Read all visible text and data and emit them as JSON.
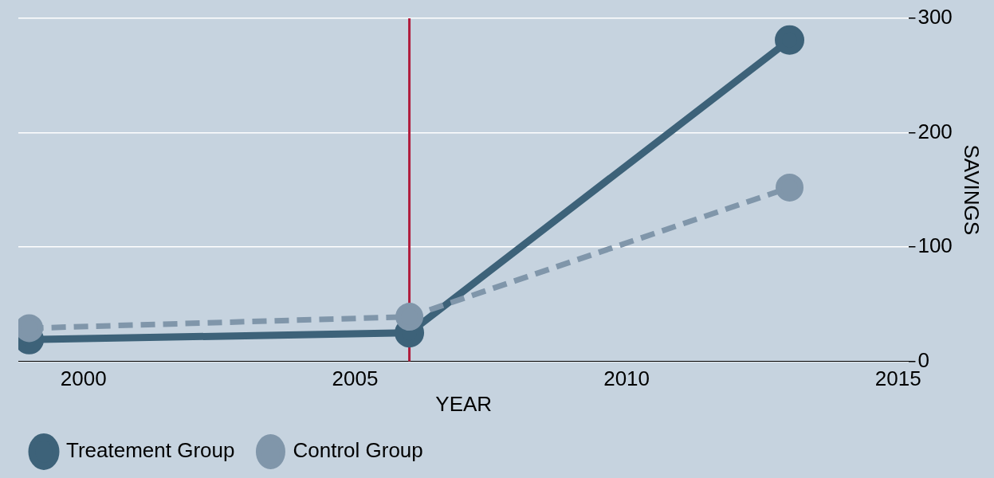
{
  "chart_data": {
    "type": "line",
    "xlabel": "YEAR",
    "ylabel": "SAVINGS",
    "x": [
      1999,
      2006,
      2013
    ],
    "series": [
      {
        "name": "Treatement Group",
        "color": "#3d6279",
        "values": [
          19,
          25,
          281
        ],
        "line_style": "solid"
      },
      {
        "name": "Control Group",
        "color": "#8096aa",
        "values": [
          29,
          39,
          152
        ],
        "line_style": "dashed"
      }
    ],
    "xlim": [
      1998.8,
      2015.2
    ],
    "xticks": [
      2000,
      2005,
      2010,
      2015
    ],
    "ylim": [
      0,
      300
    ],
    "yticks": [
      0,
      100,
      200,
      300
    ],
    "ref_lines": [
      {
        "axis": "x",
        "value": 2006,
        "color": "#b01c3c"
      }
    ],
    "grid": "y",
    "legend": "bottom",
    "marker": "circle"
  }
}
